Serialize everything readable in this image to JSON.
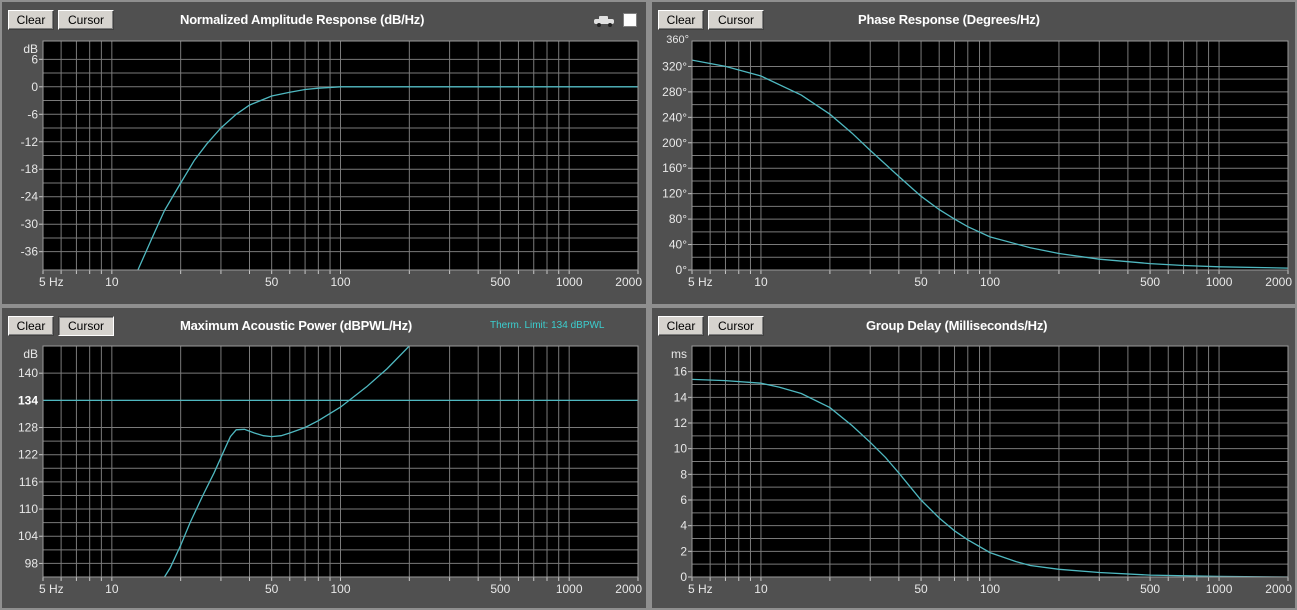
{
  "panels": [
    {
      "id": "amp",
      "buttons": {
        "clear": "Clear",
        "cursor": "Cursor"
      },
      "title": "Normalized Amplitude Response (dB/Hz)",
      "icons": [
        "car-icon",
        "checkbox-icon"
      ]
    },
    {
      "id": "phase",
      "buttons": {
        "clear": "Clear",
        "cursor": "Cursor"
      },
      "title": "Phase Response (Degrees/Hz)"
    },
    {
      "id": "power",
      "buttons": {
        "clear": "Clear",
        "cursor": "Cursor"
      },
      "title": "Maximum Acoustic Power (dBPWL/Hz)",
      "note": "Therm. Limit: 134 dBPWL"
    },
    {
      "id": "delay",
      "buttons": {
        "clear": "Clear",
        "cursor": "Cursor"
      },
      "title": "Group Delay (Milliseconds/Hz)"
    }
  ],
  "colors": {
    "trace": "#4fb8c0",
    "grid": "#7a7a7a",
    "plot_bg": "#000000",
    "panel_bg": "#505050",
    "border": "#8f8f8f"
  },
  "chart_data": [
    {
      "type": "line",
      "title": "Normalized Amplitude Response (dB/Hz)",
      "xscale": "log",
      "xlim": [
        5,
        2000
      ],
      "ylim": [
        -40,
        10
      ],
      "ylabel": "dB",
      "x_tick_labels": [
        {
          "v": 5,
          "t": "5 Hz"
        },
        {
          "v": 10,
          "t": "10"
        },
        {
          "v": 50,
          "t": "50"
        },
        {
          "v": 100,
          "t": "100"
        },
        {
          "v": 500,
          "t": "500"
        },
        {
          "v": 1000,
          "t": "1000"
        },
        {
          "v": 2000,
          "t": "2000"
        }
      ],
      "y_ticks": [
        {
          "v": 6,
          "t": "6"
        },
        {
          "v": 0,
          "t": "0"
        },
        {
          "v": -6,
          "t": "-6"
        },
        {
          "v": -12,
          "t": "-12"
        },
        {
          "v": -18,
          "t": "-18"
        },
        {
          "v": -24,
          "t": "-24"
        },
        {
          "v": -30,
          "t": "-30"
        },
        {
          "v": -36,
          "t": "-36"
        }
      ],
      "series": [
        {
          "x": [
            13,
            15,
            17,
            20,
            23,
            26,
            30,
            35,
            40,
            50,
            60,
            70,
            80,
            100,
            150,
            200,
            500,
            1000,
            2000
          ],
          "y": [
            -40,
            -33,
            -27,
            -21,
            -16,
            -12.5,
            -9,
            -6,
            -4,
            -2,
            -1.2,
            -0.6,
            -0.3,
            0,
            0,
            0,
            0,
            0,
            0
          ]
        }
      ]
    },
    {
      "type": "line",
      "title": "Phase Response (Degrees/Hz)",
      "xscale": "log",
      "xlim": [
        5,
        2000
      ],
      "ylim": [
        0,
        360
      ],
      "y_top_label": "360°",
      "x_tick_labels": [
        {
          "v": 5,
          "t": "5 Hz"
        },
        {
          "v": 10,
          "t": "10"
        },
        {
          "v": 50,
          "t": "50"
        },
        {
          "v": 100,
          "t": "100"
        },
        {
          "v": 500,
          "t": "500"
        },
        {
          "v": 1000,
          "t": "1000"
        },
        {
          "v": 2000,
          "t": "2000"
        }
      ],
      "y_ticks": [
        {
          "v": 320,
          "t": "320°"
        },
        {
          "v": 280,
          "t": "280°"
        },
        {
          "v": 240,
          "t": "240°"
        },
        {
          "v": 200,
          "t": "200°"
        },
        {
          "v": 160,
          "t": "160°"
        },
        {
          "v": 120,
          "t": "120°"
        },
        {
          "v": 80,
          "t": "80°"
        },
        {
          "v": 40,
          "t": "40°"
        },
        {
          "v": 0,
          "t": "0°"
        }
      ],
      "series": [
        {
          "x": [
            5,
            7,
            10,
            15,
            20,
            25,
            30,
            40,
            50,
            60,
            70,
            80,
            100,
            150,
            200,
            300,
            500,
            700,
            1000,
            2000
          ],
          "y": [
            330,
            320,
            305,
            275,
            245,
            215,
            188,
            147,
            116,
            95,
            80,
            68,
            52,
            35,
            26,
            17,
            10,
            7,
            5,
            3
          ]
        }
      ]
    },
    {
      "type": "line",
      "title": "Maximum Acoustic Power (dBPWL/Hz)",
      "xscale": "log",
      "xlim": [
        5,
        2000
      ],
      "ylim": [
        95,
        146
      ],
      "ylabel": "dB",
      "reference_line": {
        "y": 134,
        "label": "134"
      },
      "x_tick_labels": [
        {
          "v": 5,
          "t": "5 Hz"
        },
        {
          "v": 10,
          "t": "10"
        },
        {
          "v": 50,
          "t": "50"
        },
        {
          "v": 100,
          "t": "100"
        },
        {
          "v": 500,
          "t": "500"
        },
        {
          "v": 1000,
          "t": "1000"
        },
        {
          "v": 2000,
          "t": "2000"
        }
      ],
      "y_ticks": [
        {
          "v": 140,
          "t": "140"
        },
        {
          "v": 128,
          "t": "128"
        },
        {
          "v": 122,
          "t": "122"
        },
        {
          "v": 116,
          "t": "116"
        },
        {
          "v": 110,
          "t": "110"
        },
        {
          "v": 104,
          "t": "104"
        },
        {
          "v": 98,
          "t": "98"
        }
      ],
      "series": [
        {
          "x": [
            17,
            18,
            20,
            22,
            25,
            28,
            31,
            33,
            35,
            38,
            42,
            46,
            50,
            55,
            60,
            70,
            80,
            100,
            130,
            160,
            200
          ],
          "y": [
            95,
            97,
            102,
            107,
            113,
            118,
            123,
            126,
            127.5,
            127.6,
            126.8,
            126.2,
            126,
            126.2,
            126.8,
            128,
            129.5,
            132.5,
            137,
            141,
            146
          ]
        }
      ]
    },
    {
      "type": "line",
      "title": "Group Delay (Milliseconds/Hz)",
      "xscale": "log",
      "xlim": [
        5,
        2000
      ],
      "ylim": [
        0,
        18
      ],
      "ylabel": "ms",
      "x_tick_labels": [
        {
          "v": 5,
          "t": "5 Hz"
        },
        {
          "v": 10,
          "t": "10"
        },
        {
          "v": 50,
          "t": "50"
        },
        {
          "v": 100,
          "t": "100"
        },
        {
          "v": 500,
          "t": "500"
        },
        {
          "v": 1000,
          "t": "1000"
        },
        {
          "v": 2000,
          "t": "2000"
        }
      ],
      "y_ticks": [
        {
          "v": 16,
          "t": "16"
        },
        {
          "v": 14,
          "t": "14"
        },
        {
          "v": 12,
          "t": "12"
        },
        {
          "v": 10,
          "t": "10"
        },
        {
          "v": 8,
          "t": "8"
        },
        {
          "v": 6,
          "t": "6"
        },
        {
          "v": 4,
          "t": "4"
        },
        {
          "v": 2,
          "t": "2"
        },
        {
          "v": 0,
          "t": "0"
        }
      ],
      "series": [
        {
          "x": [
            5,
            7,
            10,
            12,
            15,
            20,
            25,
            30,
            35,
            40,
            50,
            60,
            70,
            80,
            100,
            130,
            150,
            200,
            300,
            500,
            1000,
            2000
          ],
          "y": [
            15.4,
            15.3,
            15.1,
            14.8,
            14.3,
            13.2,
            11.8,
            10.5,
            9.3,
            8.1,
            6.0,
            4.6,
            3.6,
            2.9,
            1.9,
            1.2,
            0.9,
            0.6,
            0.35,
            0.15,
            0.05,
            0
          ]
        }
      ]
    }
  ]
}
